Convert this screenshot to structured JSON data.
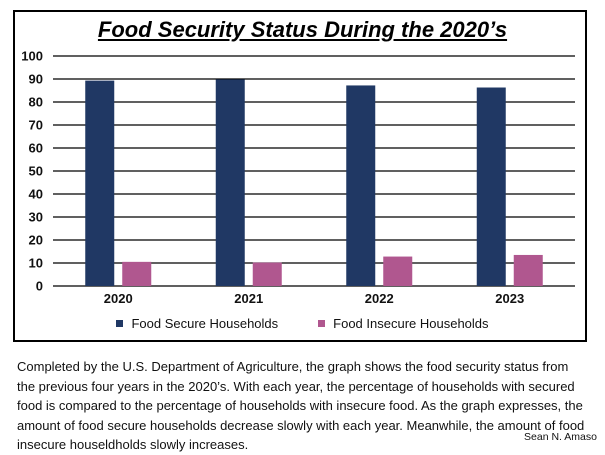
{
  "chart_data": {
    "type": "bar",
    "title": "Food Security Status During the 2020’s",
    "xlabel": "",
    "ylabel": "",
    "categories": [
      "2020",
      "2021",
      "2022",
      "2023"
    ],
    "series": [
      {
        "name": "Food Secure Households",
        "color": "#203864",
        "values": [
          89.3,
          89.8,
          87.2,
          86.3
        ]
      },
      {
        "name": "Food Insecure Households",
        "color": "#b0578f",
        "values": [
          10.5,
          10.2,
          12.8,
          13.5
        ]
      }
    ],
    "ylim": [
      0,
      100
    ],
    "yticks": [
      0,
      10,
      20,
      30,
      40,
      50,
      60,
      70,
      80,
      90,
      100
    ],
    "grid": true,
    "legend_position": "bottom"
  },
  "caption": "Completed by the U.S. Department of Agriculture, the graph shows the food security status from the previous four years in the 2020’s. With each year, the percentage of households with secured food is compared to the percentage of households with insecure food. As the graph expresses, the amount of food secure households decrease slowly with each year. Meanwhile, the amount of food insecure houseldholds slowly increases.",
  "author": "Sean N. Amaso"
}
